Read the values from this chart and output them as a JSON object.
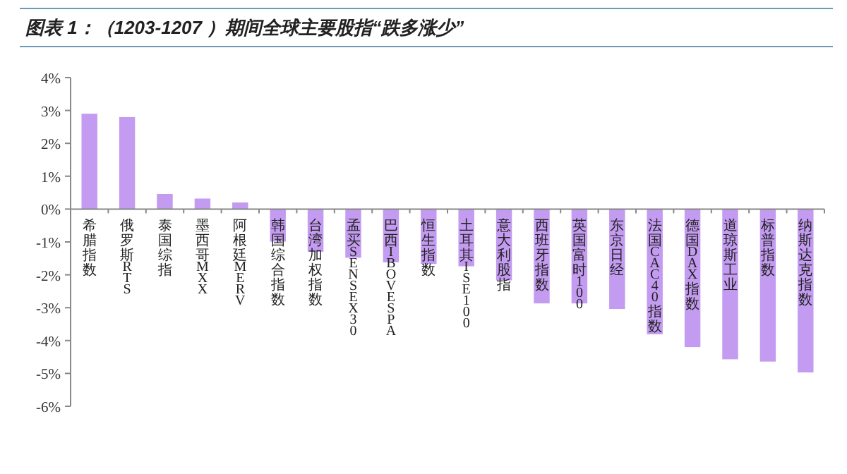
{
  "chart_data": {
    "type": "bar",
    "title": "图表 1：（1203-1207 ）期间全球主要股指“跌多涨少”",
    "categories": [
      "希腊指数",
      "俄罗斯RTS",
      "泰国综指",
      "墨西哥MXX",
      "阿根廷MERV",
      "韩国综合指数",
      "台湾加权指数",
      "孟买SENSEX30",
      "巴西IBOVESPA",
      "恒生指数",
      "土耳其ISE100",
      "意大利股指",
      "西班牙指数",
      "英国富时100",
      "东京日经",
      "法国CAC40指数",
      "德国DAX指数",
      "道琼斯工业",
      "标普指数",
      "纳斯达克指数"
    ],
    "values": [
      2.9,
      2.8,
      0.46,
      0.32,
      0.2,
      -0.99,
      -1.3,
      -1.48,
      -1.62,
      -1.67,
      -1.74,
      -2.17,
      -2.87,
      -2.87,
      -3.04,
      -3.81,
      -4.2,
      -4.57,
      -4.64,
      -4.97
    ],
    "color": "#c39bf0",
    "ylim": [
      -6,
      4
    ],
    "yticks": [
      {
        "value": -6,
        "label": "-6%"
      },
      {
        "value": -5,
        "label": "-5%"
      },
      {
        "value": -4,
        "label": "-4%"
      },
      {
        "value": -3,
        "label": "-3%"
      },
      {
        "value": -2,
        "label": "-2%"
      },
      {
        "value": -1,
        "label": "-1%"
      },
      {
        "value": 0,
        "label": "0%"
      },
      {
        "value": 1,
        "label": "1%"
      },
      {
        "value": 2,
        "label": "2%"
      },
      {
        "value": 3,
        "label": "3%"
      },
      {
        "value": 4,
        "label": "4%"
      }
    ],
    "grid": false,
    "legend": false
  }
}
